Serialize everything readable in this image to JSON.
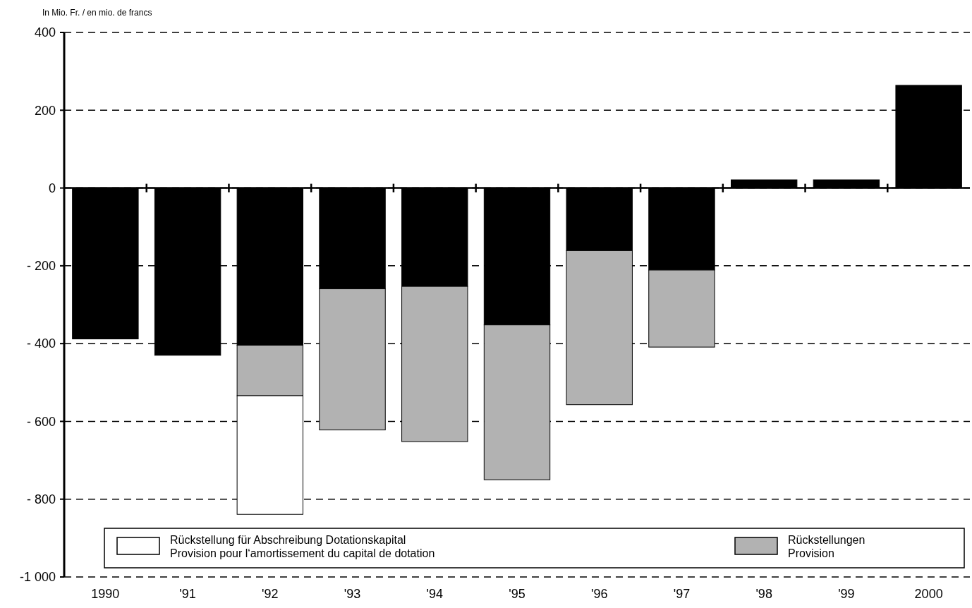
{
  "chart_data": {
    "type": "bar",
    "stacked": true,
    "ylabel": "In Mio. Fr.  / en mio. de francs",
    "categories": [
      "1990",
      "'91",
      "'92",
      "'93",
      "'94",
      "'95",
      "'96",
      "'97",
      "'98",
      "'99",
      "2000"
    ],
    "series": [
      {
        "color": "#000000",
        "values": [
          -388,
          -430,
          -404,
          -259,
          -253,
          -352,
          -161,
          -211,
          21,
          21,
          264
        ]
      },
      {
        "name": "Rückstellungen\nProvision",
        "color": "#b2b2b2",
        "values": [
          null,
          null,
          -130,
          -363,
          -399,
          -398,
          -396,
          -198,
          null,
          null,
          null
        ]
      },
      {
        "name": "Rückstellung für Abschreibung Dotationskapital\nProvision pour l‘amortissement du capital de dotation",
        "color": "#ffffff",
        "values": [
          null,
          null,
          -305,
          null,
          null,
          null,
          null,
          null,
          null,
          null,
          null
        ]
      }
    ],
    "ylim": [
      -1000,
      400
    ],
    "yticks": [
      400,
      200,
      0,
      {
        "value": -200,
        "label": "- 200"
      },
      {
        "value": -400,
        "label": "- 400"
      },
      {
        "value": -600,
        "label": "- 600"
      },
      {
        "value": -800,
        "label": "- 800"
      },
      {
        "value": -1000,
        "label": "-1 000"
      }
    ],
    "grid": "y",
    "legend": "bottom"
  }
}
